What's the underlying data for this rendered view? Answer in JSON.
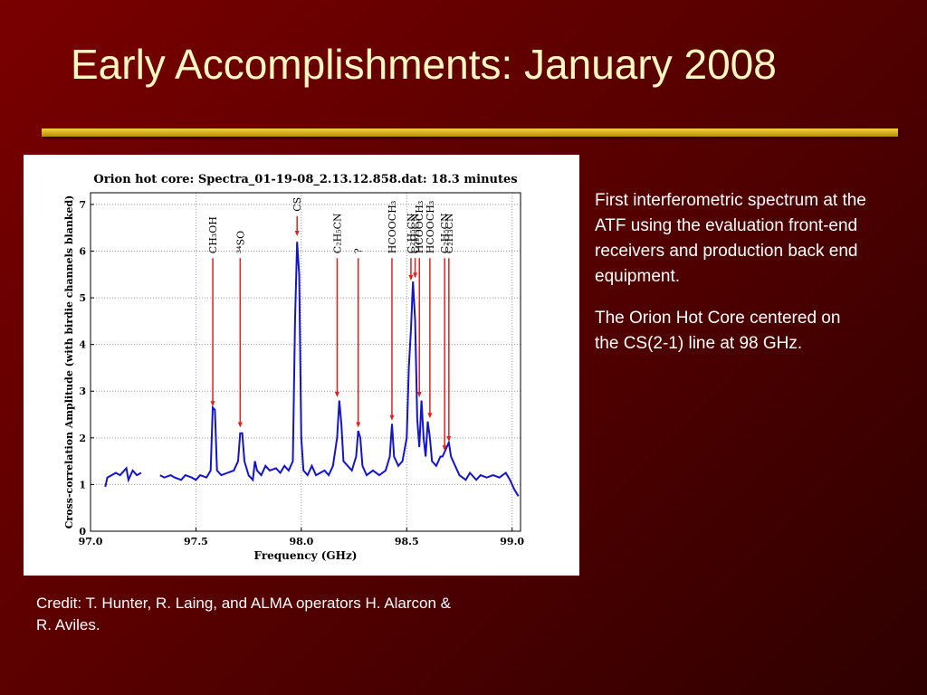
{
  "title": "Early Accomplishments: January 2008",
  "body": [
    "First interferometric spectrum at the ATF using the evaluation front-end receivers and production back end equipment.",
    "The Orion Hot Core centered on the CS(2-1) line at 98 GHz."
  ],
  "credit": "Credit: T. Hunter, R. Laing, and ALMA operators H. Alarcon & R. Aviles.",
  "chart_data": {
    "type": "line",
    "title": "Orion hot core: Spectra_01-19-08_2.13.12.858.dat: 18.3 minutes",
    "xlabel": "Frequency (GHz)",
    "ylabel": "Cross-correlation Amplitude (with birdie channels blanked)",
    "xlim": [
      97,
      99.04
    ],
    "ylim": [
      0,
      7.25
    ],
    "xticks": [
      {
        "value": 97,
        "label": "97.0"
      },
      {
        "value": 97.5,
        "label": "97.5"
      },
      {
        "value": 98,
        "label": "98.0"
      },
      {
        "value": 98.5,
        "label": "98.5"
      },
      {
        "value": 99,
        "label": "99.0"
      }
    ],
    "yticks": [
      0,
      1,
      2,
      3,
      4,
      5,
      6,
      7
    ],
    "grid": true,
    "x": [
      97.07,
      97.08,
      97.1,
      97.12,
      97.14,
      97.16,
      97.17,
      97.18,
      97.2,
      97.22,
      97.24,
      97.25,
      97.33,
      97.35,
      97.38,
      97.4,
      97.43,
      97.45,
      97.48,
      97.5,
      97.52,
      97.55,
      97.57,
      97.58,
      97.59,
      97.6,
      97.62,
      97.65,
      97.68,
      97.7,
      97.71,
      97.72,
      97.73,
      97.75,
      97.77,
      97.78,
      97.79,
      97.81,
      97.83,
      97.85,
      97.88,
      97.9,
      97.92,
      97.94,
      97.96,
      97.97,
      97.98,
      97.99,
      98.0,
      98.01,
      98.03,
      98.05,
      98.07,
      98.09,
      98.11,
      98.13,
      98.15,
      98.17,
      98.18,
      98.19,
      98.2,
      98.22,
      98.24,
      98.26,
      98.27,
      98.28,
      98.29,
      98.31,
      98.34,
      98.37,
      98.4,
      98.42,
      98.43,
      98.44,
      98.46,
      98.48,
      98.5,
      98.51,
      98.52,
      98.53,
      98.54,
      98.55,
      98.56,
      98.57,
      98.58,
      98.59,
      98.6,
      98.61,
      98.62,
      98.64,
      98.66,
      98.67,
      98.69,
      98.7,
      98.71,
      98.73,
      98.75,
      98.78,
      98.8,
      98.83,
      98.85,
      98.88,
      98.91,
      98.94,
      98.97,
      98.99,
      99.01,
      99.03
    ],
    "series": [
      {
        "color": "#1414cc",
        "values": [
          0.95,
          1.15,
          1.2,
          1.25,
          1.2,
          1.3,
          1.35,
          1.1,
          1.3,
          1.2,
          1.25,
          null,
          1.2,
          1.15,
          1.2,
          1.15,
          1.1,
          1.2,
          1.15,
          1.1,
          1.2,
          1.15,
          1.3,
          2.65,
          2.6,
          1.3,
          1.2,
          1.25,
          1.3,
          1.5,
          2.1,
          2.1,
          1.5,
          1.2,
          1.1,
          1.5,
          1.3,
          1.2,
          1.4,
          1.3,
          1.35,
          1.25,
          1.4,
          1.3,
          1.5,
          4.5,
          6.2,
          5.5,
          2.0,
          1.3,
          1.2,
          1.4,
          1.2,
          1.25,
          1.3,
          1.2,
          1.4,
          2.0,
          2.8,
          2.3,
          1.5,
          1.4,
          1.3,
          1.6,
          2.15,
          2.0,
          1.4,
          1.2,
          1.3,
          1.2,
          1.3,
          1.6,
          2.3,
          1.6,
          1.4,
          1.5,
          2.0,
          3.5,
          4.3,
          5.35,
          4.5,
          2.4,
          1.8,
          2.8,
          2.0,
          1.6,
          2.35,
          2.0,
          1.5,
          1.4,
          1.6,
          1.6,
          1.8,
          1.9,
          1.6,
          1.4,
          1.2,
          1.1,
          1.25,
          1.1,
          1.2,
          1.15,
          1.2,
          1.15,
          1.25,
          1.1,
          0.9,
          0.75
        ]
      }
    ],
    "annotations": [
      {
        "label": "CH₃OH",
        "x": 97.58,
        "y": 2.65
      },
      {
        "label": "³⁴SO",
        "x": 97.71,
        "y": 2.2
      },
      {
        "label": "CS",
        "x": 97.98,
        "y": 6.3
      },
      {
        "label": "C₂H₅CN",
        "x": 98.17,
        "y": 2.85
      },
      {
        "label": "?",
        "x": 98.27,
        "y": 2.2
      },
      {
        "label": "HCOOCH₃",
        "x": 98.43,
        "y": 2.35
      },
      {
        "label": "C₂H₅CN",
        "x": 98.52,
        "y": 5.35
      },
      {
        "label": "C₂H₃CN",
        "x": 98.54,
        "y": 5.4
      },
      {
        "label": "HCOOCH₃",
        "x": 98.56,
        "y": 2.85
      },
      {
        "label": "HCOOCH₃",
        "x": 98.61,
        "y": 2.4
      },
      {
        "label": "C₂H₅CN",
        "x": 98.68,
        "y": 1.7
      },
      {
        "label": "C₂H₃CN",
        "x": 98.7,
        "y": 1.9
      }
    ]
  }
}
